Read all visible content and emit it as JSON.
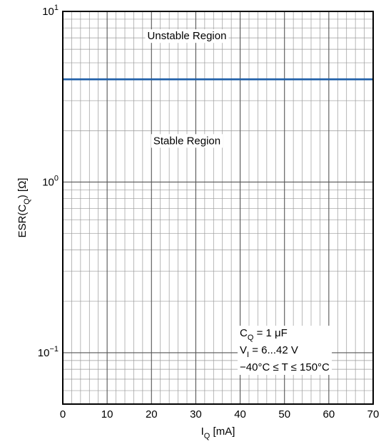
{
  "chart_data": {
    "type": "line",
    "xlabel": {
      "main": "I",
      "sub": "Q",
      "unit": " [mA]"
    },
    "ylabel": {
      "pre": "ESR(C",
      "sub": "Q",
      "post": ") [Ω]"
    },
    "xlim": [
      0,
      70
    ],
    "ylim": [
      0.05,
      10
    ],
    "yscale": "log",
    "grid": true,
    "x_ticks": [
      0,
      10,
      20,
      30,
      40,
      50,
      60,
      70
    ],
    "y_ticks": [
      {
        "value": 0.1,
        "base": "10",
        "exp": "−1"
      },
      {
        "value": 1,
        "base": "10",
        "exp": "0"
      },
      {
        "value": 10,
        "base": "10",
        "exp": "1"
      }
    ],
    "series": [
      {
        "x": [
          0,
          70
        ],
        "y": [
          4,
          4
        ],
        "color": "#1f5fa8"
      }
    ],
    "region_labels": [
      {
        "text": "Unstable Region",
        "x": 28,
        "y": 7.2
      },
      {
        "text": "Stable Region",
        "x": 28,
        "y": 1.75
      }
    ],
    "conditions": [
      {
        "main": "C",
        "sub": "Q",
        "rest": " = 1 μF"
      },
      {
        "main": "V",
        "sub": "I",
        "rest": " = 6...42 V"
      },
      {
        "main": "",
        "sub": "",
        "rest": "−40°C ≤ T ≤ 150°C"
      }
    ]
  }
}
